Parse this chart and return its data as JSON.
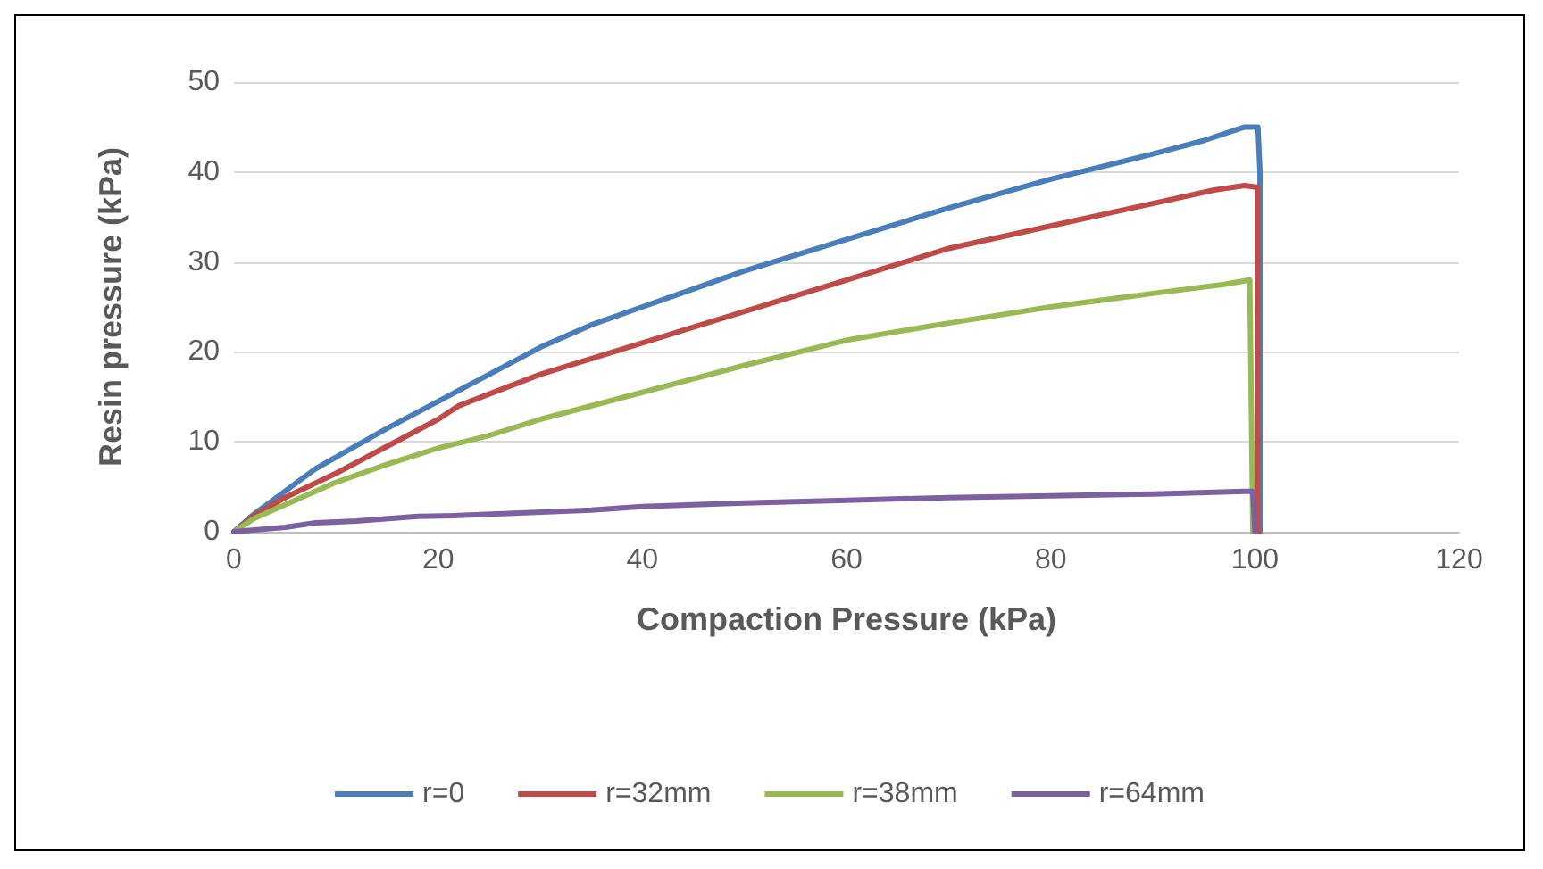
{
  "chart_data": {
    "type": "line",
    "xlabel": "Compaction Pressure (kPa)",
    "ylabel": "Resin pressure (kPa)",
    "xlim": [
      0,
      120
    ],
    "xticks": [
      0,
      20,
      40,
      60,
      80,
      100,
      120
    ],
    "ylim": [
      0,
      50
    ],
    "yticks": [
      0,
      10,
      20,
      30,
      40,
      50
    ],
    "grid": "y",
    "legend": "bottom",
    "marker": "none",
    "line_style": "solid",
    "series": [
      {
        "name": "r=0",
        "color": "#4a7ebb",
        "x": [
          0,
          2,
          5,
          8,
          10,
          15,
          20,
          25,
          30,
          35,
          40,
          50,
          60,
          70,
          80,
          90,
          95,
          99,
          100.3,
          100.5,
          100.5
        ],
        "values": [
          0,
          2,
          4.5,
          7,
          8.3,
          11.5,
          14.5,
          17.5,
          20.5,
          23,
          25,
          29,
          32.5,
          36,
          39.2,
          42,
          43.5,
          45,
          45,
          40,
          0
        ]
      },
      {
        "name": "r=32mm",
        "color": "#be4b48",
        "x": [
          0,
          2,
          5,
          10,
          15,
          20,
          22,
          30,
          40,
          50,
          60,
          70,
          80,
          90,
          96,
          99,
          100.3,
          100.3
        ],
        "values": [
          0,
          1.8,
          3.8,
          6.5,
          9.5,
          12.5,
          14,
          17.5,
          21,
          24.5,
          28,
          31.5,
          34,
          36.5,
          38,
          38.5,
          38.3,
          0
        ]
      },
      {
        "name": "r=38mm",
        "color": "#98b954",
        "x": [
          0,
          2,
          5,
          10,
          15,
          20,
          25,
          30,
          40,
          50,
          60,
          70,
          80,
          90,
          97,
          99.5,
          99.8
        ],
        "values": [
          0,
          1.5,
          3,
          5.5,
          7.5,
          9.3,
          10.7,
          12.5,
          15.5,
          18.5,
          21.3,
          23.2,
          25,
          26.5,
          27.5,
          28,
          0
        ]
      },
      {
        "name": "r=64mm",
        "color": "#7d60a0",
        "x": [
          0,
          5,
          8,
          12,
          18,
          22,
          35,
          40,
          50,
          60,
          70,
          80,
          90,
          99,
          99.8,
          100
        ],
        "values": [
          0,
          0.5,
          1,
          1.2,
          1.7,
          1.8,
          2.4,
          2.8,
          3.2,
          3.5,
          3.8,
          4,
          4.2,
          4.5,
          4.5,
          0
        ]
      }
    ]
  }
}
